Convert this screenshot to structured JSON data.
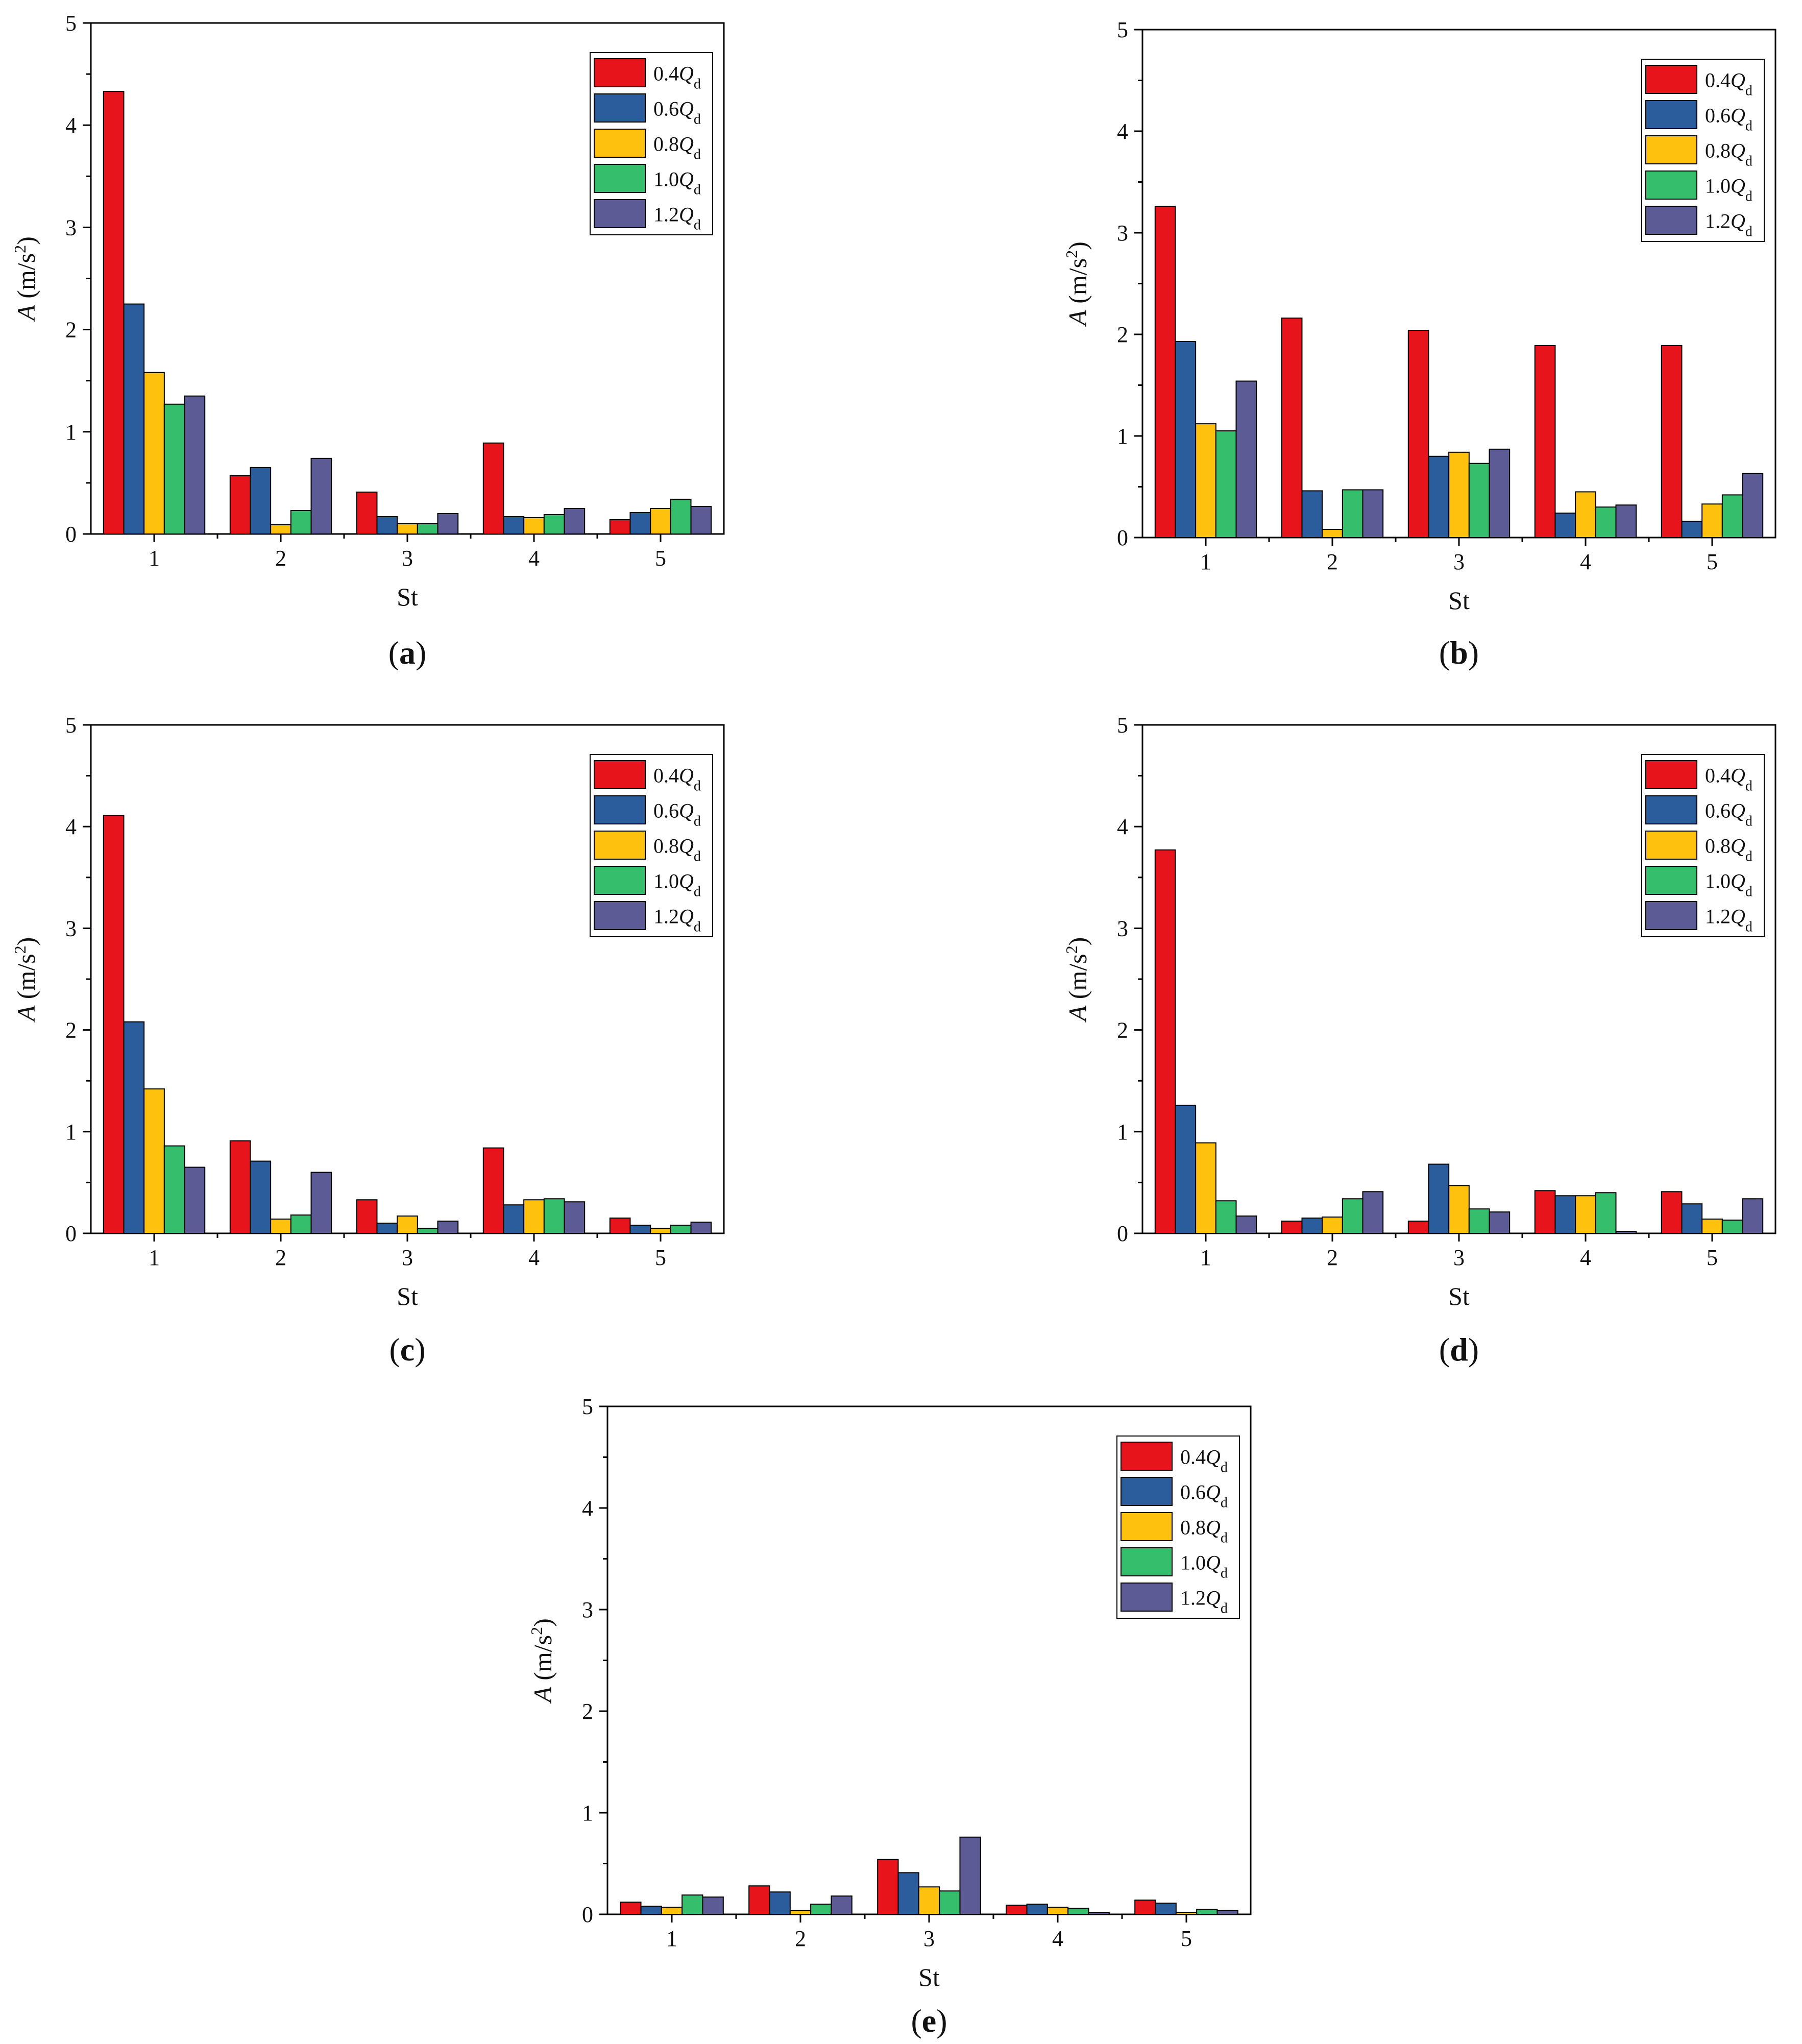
{
  "colors": {
    "series": [
      "#e8141b",
      "#2b5c9c",
      "#fec20e",
      "#35be6b",
      "#5c5b96"
    ],
    "axis": "#000000",
    "background": "#ffffff"
  },
  "chart_data": [
    {
      "panel": "(a)",
      "panel_letter": "a",
      "type": "bar",
      "xlabel": "St",
      "ylabel": "A (m/s²)",
      "ylabel_italic": "A",
      "ylabel_unit": " (m/s",
      "ylabel_sup": "2",
      "ylabel_close": ")",
      "ylim": [
        0,
        5
      ],
      "yticks": [
        "0",
        "1",
        "2",
        "3",
        "4",
        "5"
      ],
      "categories": [
        "1",
        "2",
        "3",
        "4",
        "5"
      ],
      "legend_position": "top-right",
      "series": [
        {
          "name": "0.4Q_d",
          "prefix": "0.4",
          "sym": "Q",
          "sub": "d",
          "values": [
            4.33,
            0.57,
            0.41,
            0.89,
            0.14
          ]
        },
        {
          "name": "0.6Q_d",
          "prefix": "0.6",
          "sym": "Q",
          "sub": "d",
          "values": [
            2.25,
            0.65,
            0.17,
            0.17,
            0.21
          ]
        },
        {
          "name": "0.8Q_d",
          "prefix": "0.8",
          "sym": "Q",
          "sub": "d",
          "values": [
            1.58,
            0.09,
            0.1,
            0.16,
            0.25
          ]
        },
        {
          "name": "1.0Q_d",
          "prefix": "1.0",
          "sym": "Q",
          "sub": "d",
          "values": [
            1.27,
            0.23,
            0.1,
            0.19,
            0.34
          ]
        },
        {
          "name": "1.2Q_d",
          "prefix": "1.2",
          "sym": "Q",
          "sub": "d",
          "values": [
            1.35,
            0.74,
            0.2,
            0.25,
            0.27
          ]
        }
      ]
    },
    {
      "panel": "(b)",
      "panel_letter": "b",
      "type": "bar",
      "xlabel": "St",
      "ylabel": "A (m/s²)",
      "ylabel_italic": "A",
      "ylabel_unit": " (m/s",
      "ylabel_sup": "2",
      "ylabel_close": ")",
      "ylim": [
        0,
        5
      ],
      "yticks": [
        "0",
        "1",
        "2",
        "3",
        "4",
        "5"
      ],
      "categories": [
        "1",
        "2",
        "3",
        "4",
        "5"
      ],
      "legend_position": "top-right",
      "series": [
        {
          "name": "0.4Q_d",
          "prefix": "0.4",
          "sym": "Q",
          "sub": "d",
          "values": [
            3.26,
            2.16,
            2.04,
            1.89,
            1.89
          ]
        },
        {
          "name": "0.6Q_d",
          "prefix": "0.6",
          "sym": "Q",
          "sub": "d",
          "values": [
            1.93,
            0.46,
            0.8,
            0.24,
            0.16
          ]
        },
        {
          "name": "0.8Q_d",
          "prefix": "0.8",
          "sym": "Q",
          "sub": "d",
          "values": [
            1.12,
            0.08,
            0.84,
            0.45,
            0.33
          ]
        },
        {
          "name": "1.0Q_d",
          "prefix": "1.0",
          "sym": "Q",
          "sub": "d",
          "values": [
            1.05,
            0.47,
            0.73,
            0.3,
            0.42
          ]
        },
        {
          "name": "1.2Q_d",
          "prefix": "1.2",
          "sym": "Q",
          "sub": "d",
          "values": [
            1.54,
            0.47,
            0.87,
            0.32,
            0.63
          ]
        }
      ]
    },
    {
      "panel": "(c)",
      "panel_letter": "c",
      "type": "bar",
      "xlabel": "St",
      "ylabel": "A (m/s²)",
      "ylabel_italic": "A",
      "ylabel_unit": " (m/s",
      "ylabel_sup": "2",
      "ylabel_close": ")",
      "ylim": [
        0,
        5
      ],
      "yticks": [
        "0",
        "1",
        "2",
        "3",
        "4",
        "5"
      ],
      "categories": [
        "1",
        "2",
        "3",
        "4",
        "5"
      ],
      "legend_position": "top-right",
      "series": [
        {
          "name": "0.4Q_d",
          "prefix": "0.4",
          "sym": "Q",
          "sub": "d",
          "values": [
            4.11,
            0.91,
            0.33,
            0.84,
            0.15
          ]
        },
        {
          "name": "0.6Q_d",
          "prefix": "0.6",
          "sym": "Q",
          "sub": "d",
          "values": [
            2.08,
            0.71,
            0.1,
            0.28,
            0.08
          ]
        },
        {
          "name": "0.8Q_d",
          "prefix": "0.8",
          "sym": "Q",
          "sub": "d",
          "values": [
            1.42,
            0.14,
            0.17,
            0.33,
            0.05
          ]
        },
        {
          "name": "1.0Q_d",
          "prefix": "1.0",
          "sym": "Q",
          "sub": "d",
          "values": [
            0.86,
            0.18,
            0.05,
            0.34,
            0.08
          ]
        },
        {
          "name": "1.2Q_d",
          "prefix": "1.2",
          "sym": "Q",
          "sub": "d",
          "values": [
            0.65,
            0.6,
            0.12,
            0.31,
            0.11
          ]
        }
      ]
    },
    {
      "panel": "(d)",
      "panel_letter": "d",
      "type": "bar",
      "xlabel": "St",
      "ylabel": "A (m/s²)",
      "ylabel_italic": "A",
      "ylabel_unit": " (m/s",
      "ylabel_sup": "2",
      "ylabel_close": ")",
      "ylim": [
        0,
        5
      ],
      "yticks": [
        "0",
        "1",
        "2",
        "3",
        "4",
        "5"
      ],
      "categories": [
        "1",
        "2",
        "3",
        "4",
        "5"
      ],
      "legend_position": "top-right",
      "series": [
        {
          "name": "0.4Q_d",
          "prefix": "0.4",
          "sym": "Q",
          "sub": "d",
          "values": [
            3.77,
            0.12,
            0.12,
            0.42,
            0.41
          ]
        },
        {
          "name": "0.6Q_d",
          "prefix": "0.6",
          "sym": "Q",
          "sub": "d",
          "values": [
            1.26,
            0.15,
            0.68,
            0.37,
            0.29
          ]
        },
        {
          "name": "0.8Q_d",
          "prefix": "0.8",
          "sym": "Q",
          "sub": "d",
          "values": [
            0.89,
            0.16,
            0.47,
            0.37,
            0.14
          ]
        },
        {
          "name": "1.0Q_d",
          "prefix": "1.0",
          "sym": "Q",
          "sub": "d",
          "values": [
            0.32,
            0.34,
            0.24,
            0.4,
            0.13
          ]
        },
        {
          "name": "1.2Q_d",
          "prefix": "1.2",
          "sym": "Q",
          "sub": "d",
          "values": [
            0.17,
            0.41,
            0.21,
            0.02,
            0.34
          ]
        }
      ]
    },
    {
      "panel": "(e)",
      "panel_letter": "e",
      "type": "bar",
      "xlabel": "St",
      "ylabel": "A (m/s²)",
      "ylabel_italic": "A",
      "ylabel_unit": " (m/s",
      "ylabel_sup": "2",
      "ylabel_close": ")",
      "ylim": [
        0,
        5
      ],
      "yticks": [
        "0",
        "1",
        "2",
        "3",
        "4",
        "5"
      ],
      "categories": [
        "1",
        "2",
        "3",
        "4",
        "5"
      ],
      "legend_position": "top-right",
      "series": [
        {
          "name": "0.4Q_d",
          "prefix": "0.4",
          "sym": "Q",
          "sub": "d",
          "values": [
            0.12,
            0.28,
            0.54,
            0.09,
            0.14
          ]
        },
        {
          "name": "0.6Q_d",
          "prefix": "0.6",
          "sym": "Q",
          "sub": "d",
          "values": [
            0.08,
            0.22,
            0.41,
            0.1,
            0.11
          ]
        },
        {
          "name": "0.8Q_d",
          "prefix": "0.8",
          "sym": "Q",
          "sub": "d",
          "values": [
            0.07,
            0.04,
            0.27,
            0.07,
            0.02
          ]
        },
        {
          "name": "1.0Q_d",
          "prefix": "1.0",
          "sym": "Q",
          "sub": "d",
          "values": [
            0.19,
            0.1,
            0.23,
            0.06,
            0.05
          ]
        },
        {
          "name": "1.2Q_d",
          "prefix": "1.2",
          "sym": "Q",
          "sub": "d",
          "values": [
            0.17,
            0.18,
            0.76,
            0.02,
            0.04
          ]
        }
      ]
    }
  ]
}
